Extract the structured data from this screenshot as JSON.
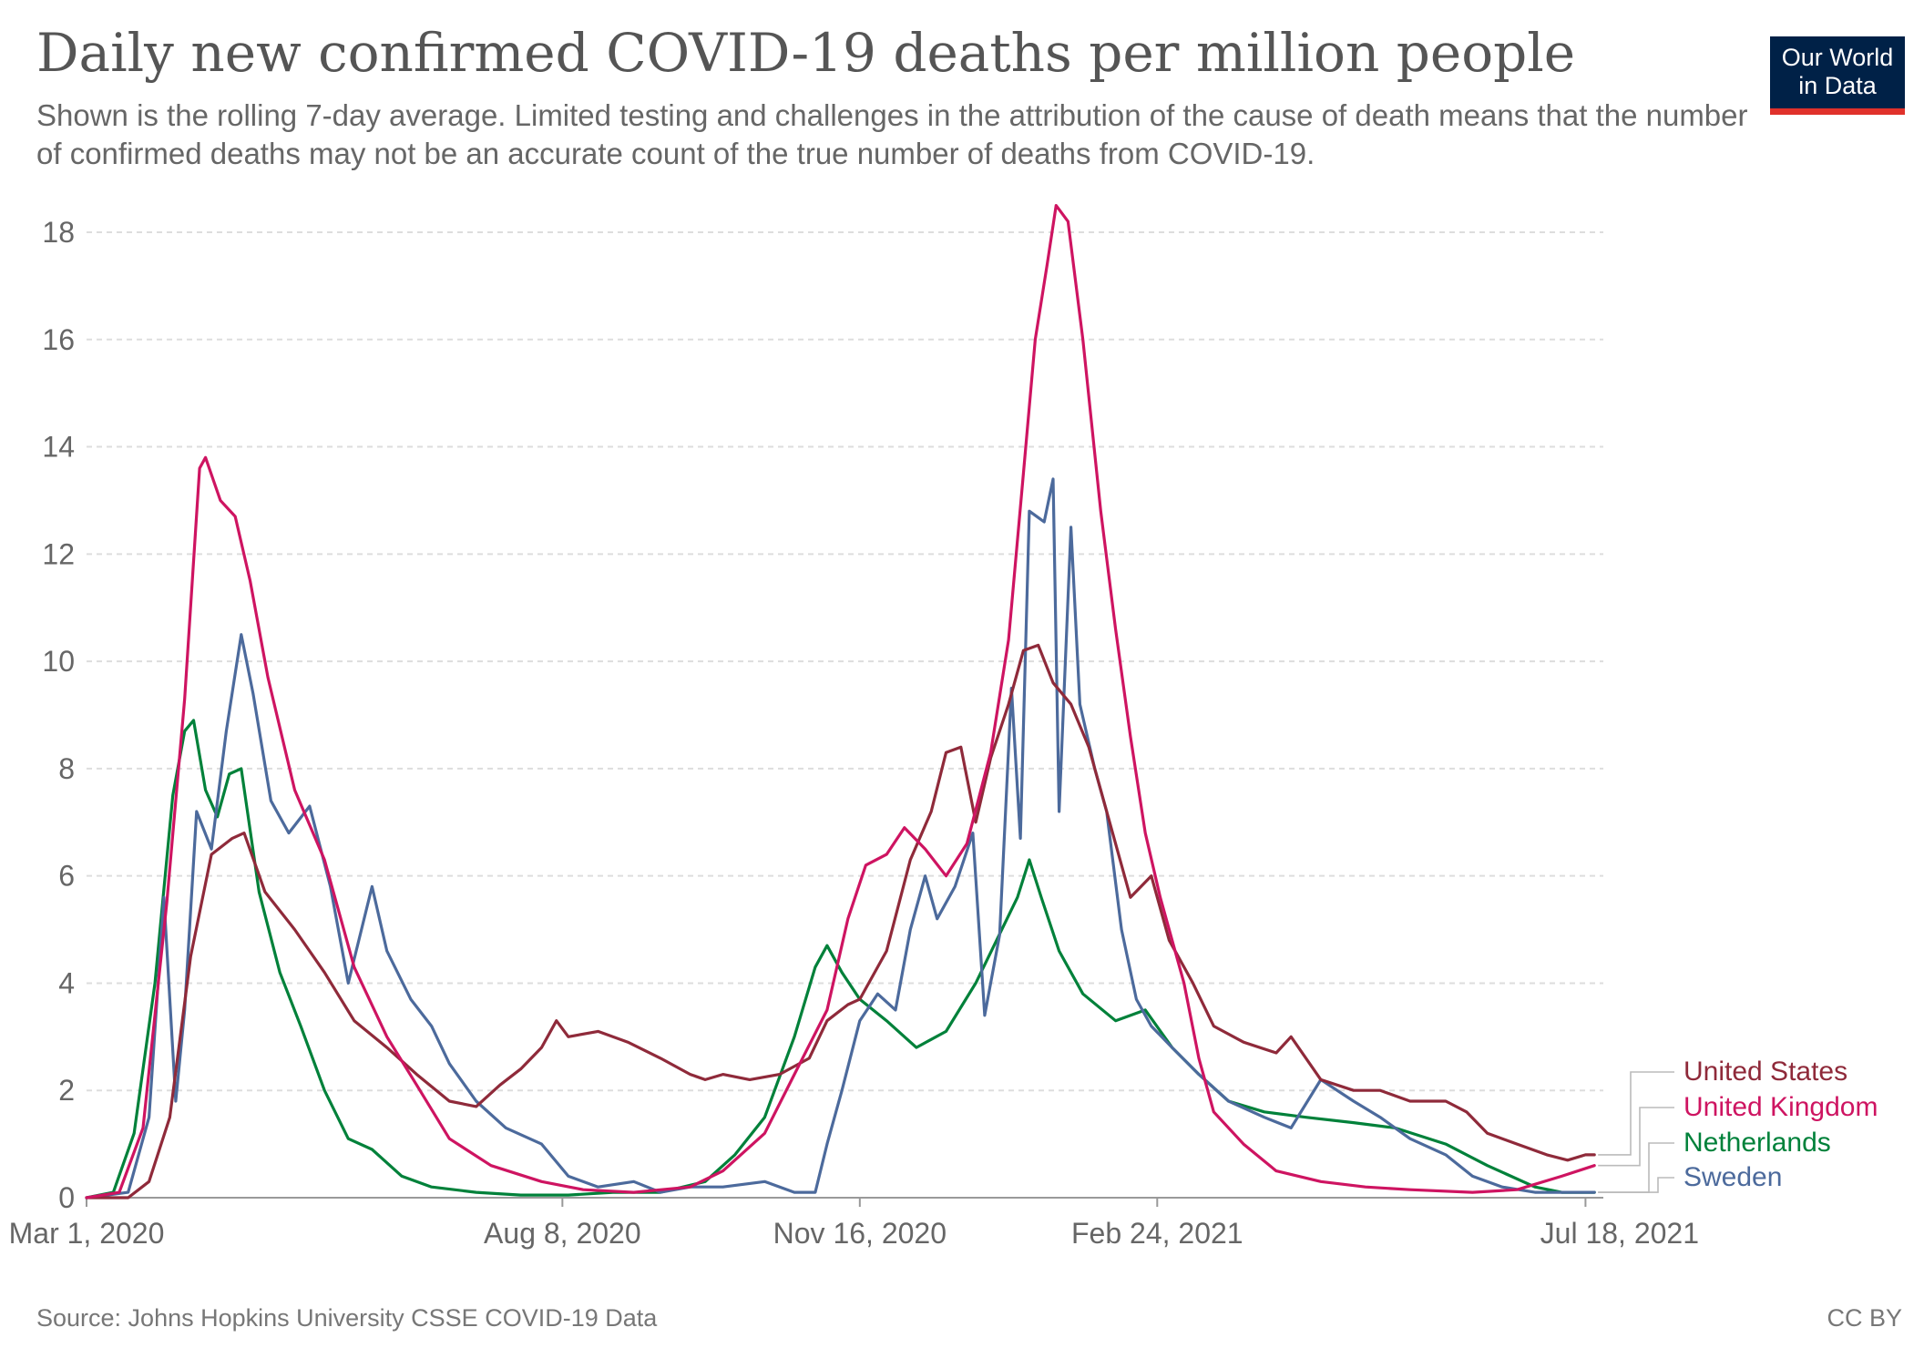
{
  "header": {
    "title": "Daily new confirmed COVID-19 deaths per million people",
    "subtitle": "Shown is the rolling 7-day average. Limited testing and challenges in the attribution of the cause of death means that the number of confirmed deaths may not be an accurate count of the true number of deaths from COVID-19."
  },
  "logo": {
    "line1": "Our World",
    "line2": "in Data",
    "bg_color": "#002147",
    "accent_color": "#e0312b"
  },
  "footer": {
    "source": "Source: Johns Hopkins University CSSE COVID-19 Data",
    "license": "CC BY"
  },
  "chart_data": {
    "type": "line",
    "title": "Daily new confirmed COVID-19 deaths per million people",
    "xlabel": "",
    "ylabel": "",
    "ylim": [
      0,
      18
    ],
    "yticks": [
      0,
      2,
      4,
      6,
      8,
      10,
      12,
      14,
      16,
      18
    ],
    "xlim": [
      "2020-03-01",
      "2021-07-24"
    ],
    "xticks": [
      {
        "date": "2020-03-01",
        "label": "Mar 1, 2020"
      },
      {
        "date": "2020-08-08",
        "label": "Aug 8, 2020"
      },
      {
        "date": "2020-11-16",
        "label": "Nov 16, 2020"
      },
      {
        "date": "2021-02-24",
        "label": "Feb 24, 2021"
      },
      {
        "date": "2021-07-18",
        "label": "Jul 18, 2021"
      }
    ],
    "grid": true,
    "legend_position": "right",
    "series": [
      {
        "name": "United States",
        "color": "#8f2a3a",
        "points": [
          [
            "2020-03-01",
            0
          ],
          [
            "2020-03-15",
            0
          ],
          [
            "2020-03-22",
            0.3
          ],
          [
            "2020-03-29",
            1.5
          ],
          [
            "2020-04-05",
            4.5
          ],
          [
            "2020-04-12",
            6.4
          ],
          [
            "2020-04-19",
            6.7
          ],
          [
            "2020-04-23",
            6.8
          ],
          [
            "2020-04-30",
            5.7
          ],
          [
            "2020-05-10",
            5.0
          ],
          [
            "2020-05-20",
            4.2
          ],
          [
            "2020-05-30",
            3.3
          ],
          [
            "2020-06-10",
            2.8
          ],
          [
            "2020-06-20",
            2.3
          ],
          [
            "2020-07-01",
            1.8
          ],
          [
            "2020-07-10",
            1.7
          ],
          [
            "2020-07-18",
            2.1
          ],
          [
            "2020-07-25",
            2.4
          ],
          [
            "2020-08-01",
            2.8
          ],
          [
            "2020-08-06",
            3.3
          ],
          [
            "2020-08-10",
            3.0
          ],
          [
            "2020-08-20",
            3.1
          ],
          [
            "2020-08-30",
            2.9
          ],
          [
            "2020-09-10",
            2.6
          ],
          [
            "2020-09-20",
            2.3
          ],
          [
            "2020-09-25",
            2.2
          ],
          [
            "2020-10-01",
            2.3
          ],
          [
            "2020-10-10",
            2.2
          ],
          [
            "2020-10-20",
            2.3
          ],
          [
            "2020-10-30",
            2.6
          ],
          [
            "2020-11-05",
            3.3
          ],
          [
            "2020-11-12",
            3.6
          ],
          [
            "2020-11-16",
            3.7
          ],
          [
            "2020-11-25",
            4.6
          ],
          [
            "2020-12-03",
            6.3
          ],
          [
            "2020-12-10",
            7.2
          ],
          [
            "2020-12-15",
            8.3
          ],
          [
            "2020-12-20",
            8.4
          ],
          [
            "2020-12-25",
            7.0
          ],
          [
            "2020-12-30",
            8.2
          ],
          [
            "2021-01-05",
            9.2
          ],
          [
            "2021-01-10",
            10.2
          ],
          [
            "2021-01-15",
            10.3
          ],
          [
            "2021-01-20",
            9.6
          ],
          [
            "2021-01-26",
            9.2
          ],
          [
            "2021-02-01",
            8.4
          ],
          [
            "2021-02-08",
            7.0
          ],
          [
            "2021-02-15",
            5.6
          ],
          [
            "2021-02-22",
            6.0
          ],
          [
            "2021-02-28",
            4.8
          ],
          [
            "2021-03-08",
            4.0
          ],
          [
            "2021-03-15",
            3.2
          ],
          [
            "2021-03-25",
            2.9
          ],
          [
            "2021-04-05",
            2.7
          ],
          [
            "2021-04-10",
            3.0
          ],
          [
            "2021-04-20",
            2.2
          ],
          [
            "2021-05-01",
            2.0
          ],
          [
            "2021-05-10",
            2.0
          ],
          [
            "2021-05-20",
            1.8
          ],
          [
            "2021-06-01",
            1.8
          ],
          [
            "2021-06-08",
            1.6
          ],
          [
            "2021-06-15",
            1.2
          ],
          [
            "2021-06-25",
            1.0
          ],
          [
            "2021-07-05",
            0.8
          ],
          [
            "2021-07-12",
            0.7
          ],
          [
            "2021-07-18",
            0.8
          ],
          [
            "2021-07-21",
            0.8
          ]
        ]
      },
      {
        "name": "United Kingdom",
        "color": "#ce1461",
        "points": [
          [
            "2020-03-01",
            0
          ],
          [
            "2020-03-12",
            0.1
          ],
          [
            "2020-03-20",
            1.3
          ],
          [
            "2020-03-28",
            5.5
          ],
          [
            "2020-04-03",
            9.3
          ],
          [
            "2020-04-08",
            13.6
          ],
          [
            "2020-04-10",
            13.8
          ],
          [
            "2020-04-15",
            13.0
          ],
          [
            "2020-04-20",
            12.7
          ],
          [
            "2020-04-25",
            11.5
          ],
          [
            "2020-05-01",
            9.7
          ],
          [
            "2020-05-10",
            7.6
          ],
          [
            "2020-05-20",
            6.3
          ],
          [
            "2020-05-30",
            4.3
          ],
          [
            "2020-06-10",
            3.0
          ],
          [
            "2020-06-20",
            2.1
          ],
          [
            "2020-07-01",
            1.1
          ],
          [
            "2020-07-15",
            0.6
          ],
          [
            "2020-08-01",
            0.3
          ],
          [
            "2020-08-15",
            0.15
          ],
          [
            "2020-09-01",
            0.1
          ],
          [
            "2020-09-20",
            0.2
          ],
          [
            "2020-10-01",
            0.5
          ],
          [
            "2020-10-15",
            1.2
          ],
          [
            "2020-10-25",
            2.3
          ],
          [
            "2020-11-05",
            3.5
          ],
          [
            "2020-11-12",
            5.2
          ],
          [
            "2020-11-18",
            6.2
          ],
          [
            "2020-11-25",
            6.4
          ],
          [
            "2020-12-01",
            6.9
          ],
          [
            "2020-12-08",
            6.5
          ],
          [
            "2020-12-15",
            6.0
          ],
          [
            "2020-12-22",
            6.6
          ],
          [
            "2020-12-30",
            8.3
          ],
          [
            "2021-01-05",
            10.4
          ],
          [
            "2021-01-10",
            13.5
          ],
          [
            "2021-01-14",
            16.0
          ],
          [
            "2021-01-18",
            17.4
          ],
          [
            "2021-01-21",
            18.5
          ],
          [
            "2021-01-25",
            18.2
          ],
          [
            "2021-01-30",
            16.0
          ],
          [
            "2021-02-05",
            12.8
          ],
          [
            "2021-02-10",
            10.6
          ],
          [
            "2021-02-15",
            8.6
          ],
          [
            "2021-02-20",
            6.8
          ],
          [
            "2021-02-25",
            5.6
          ],
          [
            "2021-03-05",
            4.0
          ],
          [
            "2021-03-10",
            2.6
          ],
          [
            "2021-03-15",
            1.6
          ],
          [
            "2021-03-25",
            1.0
          ],
          [
            "2021-04-05",
            0.5
          ],
          [
            "2021-04-20",
            0.3
          ],
          [
            "2021-05-05",
            0.2
          ],
          [
            "2021-05-20",
            0.15
          ],
          [
            "2021-06-10",
            0.1
          ],
          [
            "2021-06-25",
            0.15
          ],
          [
            "2021-07-10",
            0.4
          ],
          [
            "2021-07-21",
            0.6
          ]
        ]
      },
      {
        "name": "Netherlands",
        "color": "#00813a",
        "points": [
          [
            "2020-03-01",
            0
          ],
          [
            "2020-03-10",
            0.1
          ],
          [
            "2020-03-17",
            1.2
          ],
          [
            "2020-03-24",
            4.0
          ],
          [
            "2020-03-30",
            7.5
          ],
          [
            "2020-04-03",
            8.7
          ],
          [
            "2020-04-06",
            8.9
          ],
          [
            "2020-04-10",
            7.6
          ],
          [
            "2020-04-14",
            7.1
          ],
          [
            "2020-04-18",
            7.9
          ],
          [
            "2020-04-22",
            8.0
          ],
          [
            "2020-04-28",
            5.7
          ],
          [
            "2020-05-05",
            4.2
          ],
          [
            "2020-05-12",
            3.2
          ],
          [
            "2020-05-20",
            2.0
          ],
          [
            "2020-05-28",
            1.1
          ],
          [
            "2020-06-05",
            0.9
          ],
          [
            "2020-06-15",
            0.4
          ],
          [
            "2020-06-25",
            0.2
          ],
          [
            "2020-07-10",
            0.1
          ],
          [
            "2020-07-25",
            0.05
          ],
          [
            "2020-08-10",
            0.05
          ],
          [
            "2020-08-25",
            0.1
          ],
          [
            "2020-09-10",
            0.1
          ],
          [
            "2020-09-25",
            0.3
          ],
          [
            "2020-10-05",
            0.8
          ],
          [
            "2020-10-15",
            1.5
          ],
          [
            "2020-10-25",
            3.0
          ],
          [
            "2020-11-01",
            4.3
          ],
          [
            "2020-11-05",
            4.7
          ],
          [
            "2020-11-10",
            4.2
          ],
          [
            "2020-11-16",
            3.7
          ],
          [
            "2020-11-25",
            3.3
          ],
          [
            "2020-12-05",
            2.8
          ],
          [
            "2020-12-15",
            3.1
          ],
          [
            "2020-12-25",
            4.0
          ],
          [
            "2021-01-01",
            4.8
          ],
          [
            "2021-01-08",
            5.6
          ],
          [
            "2021-01-12",
            6.3
          ],
          [
            "2021-01-16",
            5.6
          ],
          [
            "2021-01-22",
            4.6
          ],
          [
            "2021-01-30",
            3.8
          ],
          [
            "2021-02-10",
            3.3
          ],
          [
            "2021-02-20",
            3.5
          ],
          [
            "2021-03-01",
            2.8
          ],
          [
            "2021-03-10",
            2.3
          ],
          [
            "2021-03-20",
            1.8
          ],
          [
            "2021-04-01",
            1.6
          ],
          [
            "2021-04-15",
            1.5
          ],
          [
            "2021-05-01",
            1.4
          ],
          [
            "2021-05-15",
            1.3
          ],
          [
            "2021-06-01",
            1.0
          ],
          [
            "2021-06-15",
            0.6
          ],
          [
            "2021-07-01",
            0.2
          ],
          [
            "2021-07-10",
            0.1
          ],
          [
            "2021-07-21",
            0.1
          ]
        ]
      },
      {
        "name": "Sweden",
        "color": "#4c6a9c",
        "points": [
          [
            "2020-03-01",
            0
          ],
          [
            "2020-03-15",
            0.1
          ],
          [
            "2020-03-22",
            1.5
          ],
          [
            "2020-03-27",
            5.6
          ],
          [
            "2020-03-31",
            1.8
          ],
          [
            "2020-04-03",
            3.5
          ],
          [
            "2020-04-07",
            7.2
          ],
          [
            "2020-04-12",
            6.5
          ],
          [
            "2020-04-17",
            8.7
          ],
          [
            "2020-04-22",
            10.5
          ],
          [
            "2020-04-26",
            9.4
          ],
          [
            "2020-05-02",
            7.4
          ],
          [
            "2020-05-08",
            6.8
          ],
          [
            "2020-05-15",
            7.3
          ],
          [
            "2020-05-22",
            5.8
          ],
          [
            "2020-05-28",
            4.0
          ],
          [
            "2020-06-05",
            5.8
          ],
          [
            "2020-06-10",
            4.6
          ],
          [
            "2020-06-18",
            3.7
          ],
          [
            "2020-06-25",
            3.2
          ],
          [
            "2020-07-01",
            2.5
          ],
          [
            "2020-07-10",
            1.8
          ],
          [
            "2020-07-20",
            1.3
          ],
          [
            "2020-08-01",
            1.0
          ],
          [
            "2020-08-10",
            0.4
          ],
          [
            "2020-08-20",
            0.2
          ],
          [
            "2020-09-01",
            0.3
          ],
          [
            "2020-09-10",
            0.1
          ],
          [
            "2020-09-20",
            0.2
          ],
          [
            "2020-10-01",
            0.2
          ],
          [
            "2020-10-15",
            0.3
          ],
          [
            "2020-10-25",
            0.1
          ],
          [
            "2020-11-01",
            0.1
          ],
          [
            "2020-11-05",
            1.0
          ],
          [
            "2020-11-10",
            2.0
          ],
          [
            "2020-11-16",
            3.3
          ],
          [
            "2020-11-22",
            3.8
          ],
          [
            "2020-11-28",
            3.5
          ],
          [
            "2020-12-03",
            5.0
          ],
          [
            "2020-12-08",
            6.0
          ],
          [
            "2020-12-12",
            5.2
          ],
          [
            "2020-12-18",
            5.8
          ],
          [
            "2020-12-24",
            6.8
          ],
          [
            "2020-12-28",
            3.4
          ],
          [
            "2021-01-02",
            4.9
          ],
          [
            "2021-01-06",
            9.5
          ],
          [
            "2021-01-09",
            6.7
          ],
          [
            "2021-01-12",
            12.8
          ],
          [
            "2021-01-17",
            12.6
          ],
          [
            "2021-01-20",
            13.4
          ],
          [
            "2021-01-22",
            7.2
          ],
          [
            "2021-01-26",
            12.5
          ],
          [
            "2021-01-29",
            9.2
          ],
          [
            "2021-02-03",
            8.0
          ],
          [
            "2021-02-07",
            7.2
          ],
          [
            "2021-02-12",
            5.0
          ],
          [
            "2021-02-17",
            3.7
          ],
          [
            "2021-02-22",
            3.2
          ],
          [
            "2021-03-01",
            2.8
          ],
          [
            "2021-03-10",
            2.3
          ],
          [
            "2021-03-20",
            1.8
          ],
          [
            "2021-04-01",
            1.5
          ],
          [
            "2021-04-10",
            1.3
          ],
          [
            "2021-04-20",
            2.2
          ],
          [
            "2021-05-01",
            1.8
          ],
          [
            "2021-05-10",
            1.5
          ],
          [
            "2021-05-20",
            1.1
          ],
          [
            "2021-06-01",
            0.8
          ],
          [
            "2021-06-10",
            0.4
          ],
          [
            "2021-06-20",
            0.2
          ],
          [
            "2021-07-01",
            0.1
          ],
          [
            "2021-07-10",
            0.1
          ],
          [
            "2021-07-21",
            0.1
          ]
        ]
      }
    ]
  }
}
